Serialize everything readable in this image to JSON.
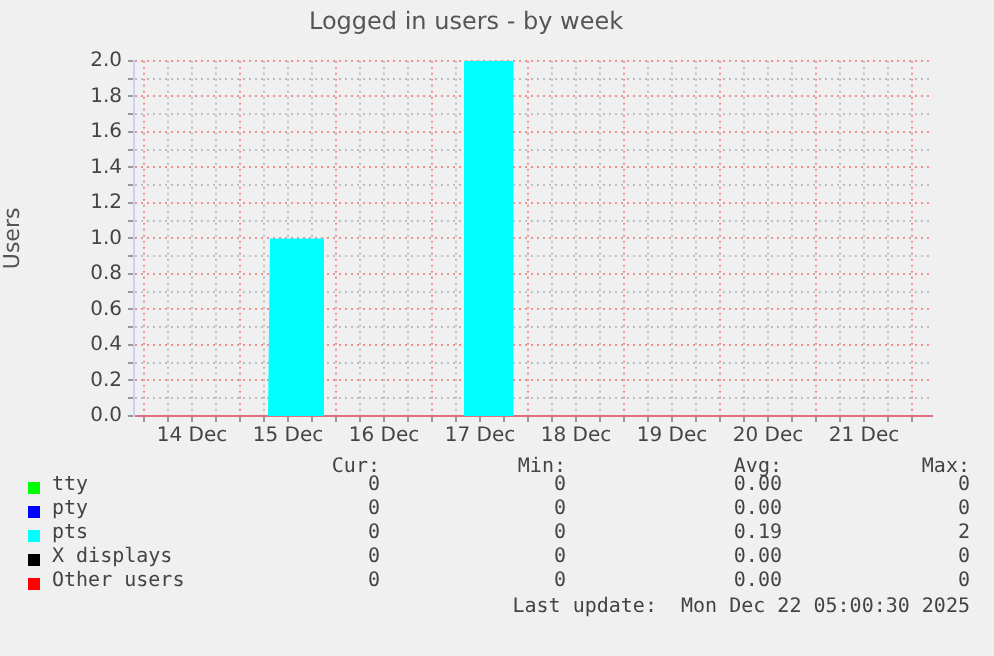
{
  "chart_data": {
    "type": "area",
    "title": "Logged in users - by week",
    "ylabel": "Users",
    "xlim": [
      "2025-12-13T21:30",
      "2025-12-22T05:00"
    ],
    "xticks": [
      {
        "value": "2025-12-14T00:00",
        "label": null
      },
      {
        "value": "2025-12-14T06:00",
        "label": null
      },
      {
        "value": "2025-12-14T12:00",
        "label": "14 Dec"
      },
      {
        "value": "2025-12-14T18:00",
        "label": null
      },
      {
        "value": "2025-12-15T00:00",
        "label": null
      },
      {
        "value": "2025-12-15T06:00",
        "label": null
      },
      {
        "value": "2025-12-15T12:00",
        "label": "15 Dec"
      },
      {
        "value": "2025-12-15T18:00",
        "label": null
      },
      {
        "value": "2025-12-16T00:00",
        "label": null
      },
      {
        "value": "2025-12-16T06:00",
        "label": null
      },
      {
        "value": "2025-12-16T12:00",
        "label": "16 Dec"
      },
      {
        "value": "2025-12-16T18:00",
        "label": null
      },
      {
        "value": "2025-12-17T00:00",
        "label": null
      },
      {
        "value": "2025-12-17T06:00",
        "label": null
      },
      {
        "value": "2025-12-17T12:00",
        "label": "17 Dec"
      },
      {
        "value": "2025-12-17T18:00",
        "label": null
      },
      {
        "value": "2025-12-18T00:00",
        "label": null
      },
      {
        "value": "2025-12-18T06:00",
        "label": null
      },
      {
        "value": "2025-12-18T12:00",
        "label": "18 Dec"
      },
      {
        "value": "2025-12-18T18:00",
        "label": null
      },
      {
        "value": "2025-12-19T00:00",
        "label": null
      },
      {
        "value": "2025-12-19T06:00",
        "label": null
      },
      {
        "value": "2025-12-19T12:00",
        "label": "19 Dec"
      },
      {
        "value": "2025-12-19T18:00",
        "label": null
      },
      {
        "value": "2025-12-20T00:00",
        "label": null
      },
      {
        "value": "2025-12-20T06:00",
        "label": null
      },
      {
        "value": "2025-12-20T12:00",
        "label": "20 Dec"
      },
      {
        "value": "2025-12-20T18:00",
        "label": null
      },
      {
        "value": "2025-12-21T00:00",
        "label": null
      },
      {
        "value": "2025-12-21T06:00",
        "label": null
      },
      {
        "value": "2025-12-21T12:00",
        "label": "21 Dec"
      },
      {
        "value": "2025-12-21T18:00",
        "label": null
      },
      {
        "value": "2025-12-22T00:00",
        "label": null
      }
    ],
    "ylim": [
      0,
      2.0
    ],
    "yticks": [
      {
        "value": 0,
        "label": "0.0"
      },
      {
        "value": 0.1,
        "label": null
      },
      {
        "value": 0.2,
        "label": "0.2"
      },
      {
        "value": 0.3,
        "label": null
      },
      {
        "value": 0.4,
        "label": "0.4"
      },
      {
        "value": 0.5,
        "label": null
      },
      {
        "value": 0.6,
        "label": "0.6"
      },
      {
        "value": 0.7,
        "label": null
      },
      {
        "value": 0.8,
        "label": "0.8"
      },
      {
        "value": 0.9,
        "label": null
      },
      {
        "value": 1.0,
        "label": "1.0"
      },
      {
        "value": 1.1,
        "label": null
      },
      {
        "value": 1.2,
        "label": "1.2"
      },
      {
        "value": 1.3,
        "label": null
      },
      {
        "value": 1.4,
        "label": "1.4"
      },
      {
        "value": 1.5,
        "label": null
      },
      {
        "value": 1.6,
        "label": "1.6"
      },
      {
        "value": 1.7,
        "label": null
      },
      {
        "value": 1.8,
        "label": "1.8"
      },
      {
        "value": 1.9,
        "label": null
      },
      {
        "value": 2.0,
        "label": "2.0"
      }
    ],
    "grid": true,
    "legend": "bottom",
    "series": [
      {
        "name": "tty",
        "color": "#00ff00"
      },
      {
        "name": "pty",
        "color": "#0000ff"
      },
      {
        "name": "pts",
        "color": "#00ffff",
        "x": [
          "2025-12-13T21:30",
          "2025-12-15T07:00",
          "2025-12-15T07:30",
          "2025-12-15T21:00",
          "2025-12-15T21:00",
          "2025-12-17T08:00",
          "2025-12-17T08:00",
          "2025-12-17T20:20",
          "2025-12-17T20:20",
          "2025-12-22T05:00"
        ],
        "values": [
          0,
          0,
          1.0,
          1.0,
          0,
          0,
          2.0,
          2.0,
          0,
          0
        ]
      },
      {
        "name": "X displays",
        "color": "#000000"
      },
      {
        "name": "Other users",
        "color": "#ff0000"
      }
    ],
    "annotations": [
      "Cur:",
      "Min:",
      "Avg:",
      "Max:",
      "0",
      "0",
      "0.00",
      "0",
      "0",
      "0",
      "0.00",
      "0",
      "0",
      "0",
      "0.19",
      "2",
      "0",
      "0",
      "0.00",
      "0",
      "0",
      "0",
      "0.00",
      "0",
      "Last update:  Mon Dec 22 05:00:30 2025"
    ]
  }
}
